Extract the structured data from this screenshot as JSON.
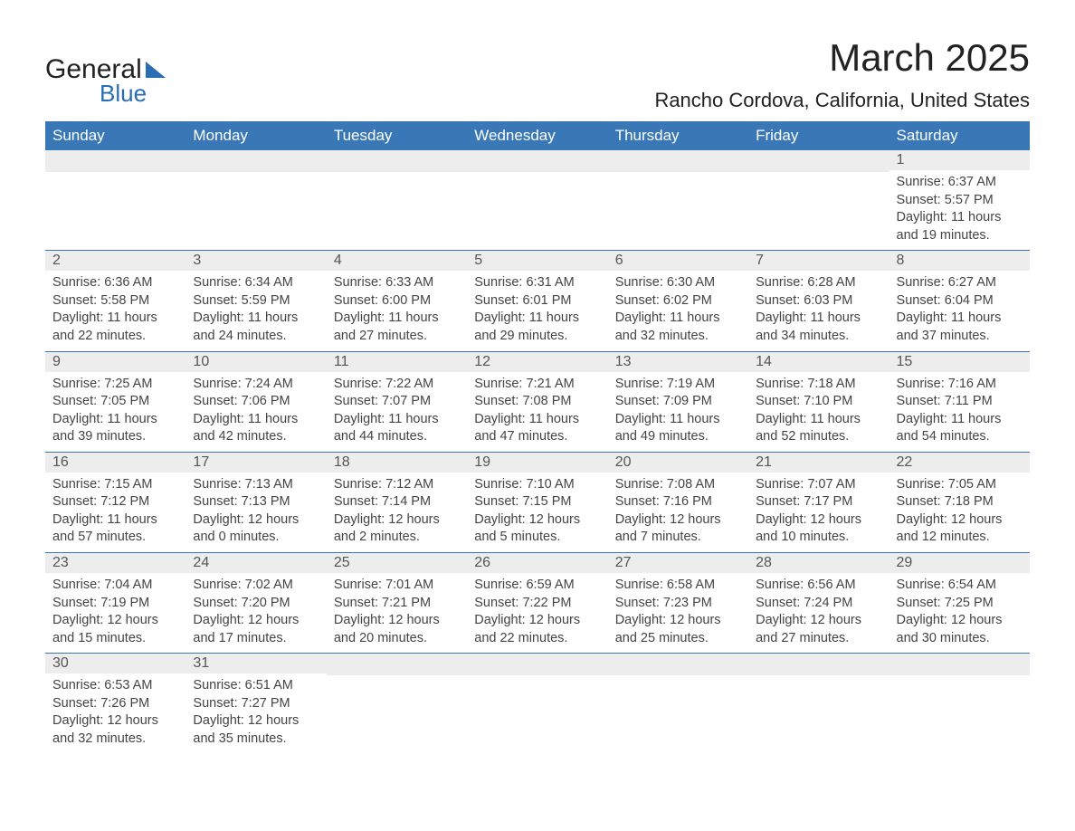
{
  "brand": {
    "word1": "General",
    "word2": "Blue"
  },
  "title": "March 2025",
  "location": "Rancho Cordova, California, United States",
  "weekdays": [
    "Sunday",
    "Monday",
    "Tuesday",
    "Wednesday",
    "Thursday",
    "Friday",
    "Saturday"
  ],
  "colors": {
    "header_bg": "#3a77b7",
    "header_text": "#ffffff",
    "daynum_bg": "#ededed",
    "border": "#3a77b7",
    "brand_blue": "#2a6db5"
  },
  "weeks": [
    [
      null,
      null,
      null,
      null,
      null,
      null,
      {
        "n": "1",
        "sunrise": "6:37 AM",
        "sunset": "5:57 PM",
        "daylight": "11 hours and 19 minutes."
      }
    ],
    [
      {
        "n": "2",
        "sunrise": "6:36 AM",
        "sunset": "5:58 PM",
        "daylight": "11 hours and 22 minutes."
      },
      {
        "n": "3",
        "sunrise": "6:34 AM",
        "sunset": "5:59 PM",
        "daylight": "11 hours and 24 minutes."
      },
      {
        "n": "4",
        "sunrise": "6:33 AM",
        "sunset": "6:00 PM",
        "daylight": "11 hours and 27 minutes."
      },
      {
        "n": "5",
        "sunrise": "6:31 AM",
        "sunset": "6:01 PM",
        "daylight": "11 hours and 29 minutes."
      },
      {
        "n": "6",
        "sunrise": "6:30 AM",
        "sunset": "6:02 PM",
        "daylight": "11 hours and 32 minutes."
      },
      {
        "n": "7",
        "sunrise": "6:28 AM",
        "sunset": "6:03 PM",
        "daylight": "11 hours and 34 minutes."
      },
      {
        "n": "8",
        "sunrise": "6:27 AM",
        "sunset": "6:04 PM",
        "daylight": "11 hours and 37 minutes."
      }
    ],
    [
      {
        "n": "9",
        "sunrise": "7:25 AM",
        "sunset": "7:05 PM",
        "daylight": "11 hours and 39 minutes."
      },
      {
        "n": "10",
        "sunrise": "7:24 AM",
        "sunset": "7:06 PM",
        "daylight": "11 hours and 42 minutes."
      },
      {
        "n": "11",
        "sunrise": "7:22 AM",
        "sunset": "7:07 PM",
        "daylight": "11 hours and 44 minutes."
      },
      {
        "n": "12",
        "sunrise": "7:21 AM",
        "sunset": "7:08 PM",
        "daylight": "11 hours and 47 minutes."
      },
      {
        "n": "13",
        "sunrise": "7:19 AM",
        "sunset": "7:09 PM",
        "daylight": "11 hours and 49 minutes."
      },
      {
        "n": "14",
        "sunrise": "7:18 AM",
        "sunset": "7:10 PM",
        "daylight": "11 hours and 52 minutes."
      },
      {
        "n": "15",
        "sunrise": "7:16 AM",
        "sunset": "7:11 PM",
        "daylight": "11 hours and 54 minutes."
      }
    ],
    [
      {
        "n": "16",
        "sunrise": "7:15 AM",
        "sunset": "7:12 PM",
        "daylight": "11 hours and 57 minutes."
      },
      {
        "n": "17",
        "sunrise": "7:13 AM",
        "sunset": "7:13 PM",
        "daylight": "12 hours and 0 minutes."
      },
      {
        "n": "18",
        "sunrise": "7:12 AM",
        "sunset": "7:14 PM",
        "daylight": "12 hours and 2 minutes."
      },
      {
        "n": "19",
        "sunrise": "7:10 AM",
        "sunset": "7:15 PM",
        "daylight": "12 hours and 5 minutes."
      },
      {
        "n": "20",
        "sunrise": "7:08 AM",
        "sunset": "7:16 PM",
        "daylight": "12 hours and 7 minutes."
      },
      {
        "n": "21",
        "sunrise": "7:07 AM",
        "sunset": "7:17 PM",
        "daylight": "12 hours and 10 minutes."
      },
      {
        "n": "22",
        "sunrise": "7:05 AM",
        "sunset": "7:18 PM",
        "daylight": "12 hours and 12 minutes."
      }
    ],
    [
      {
        "n": "23",
        "sunrise": "7:04 AM",
        "sunset": "7:19 PM",
        "daylight": "12 hours and 15 minutes."
      },
      {
        "n": "24",
        "sunrise": "7:02 AM",
        "sunset": "7:20 PM",
        "daylight": "12 hours and 17 minutes."
      },
      {
        "n": "25",
        "sunrise": "7:01 AM",
        "sunset": "7:21 PM",
        "daylight": "12 hours and 20 minutes."
      },
      {
        "n": "26",
        "sunrise": "6:59 AM",
        "sunset": "7:22 PM",
        "daylight": "12 hours and 22 minutes."
      },
      {
        "n": "27",
        "sunrise": "6:58 AM",
        "sunset": "7:23 PM",
        "daylight": "12 hours and 25 minutes."
      },
      {
        "n": "28",
        "sunrise": "6:56 AM",
        "sunset": "7:24 PM",
        "daylight": "12 hours and 27 minutes."
      },
      {
        "n": "29",
        "sunrise": "6:54 AM",
        "sunset": "7:25 PM",
        "daylight": "12 hours and 30 minutes."
      }
    ],
    [
      {
        "n": "30",
        "sunrise": "6:53 AM",
        "sunset": "7:26 PM",
        "daylight": "12 hours and 32 minutes."
      },
      {
        "n": "31",
        "sunrise": "6:51 AM",
        "sunset": "7:27 PM",
        "daylight": "12 hours and 35 minutes."
      },
      null,
      null,
      null,
      null,
      null
    ]
  ],
  "labels": {
    "sunrise": "Sunrise: ",
    "sunset": "Sunset: ",
    "daylight": "Daylight: "
  }
}
